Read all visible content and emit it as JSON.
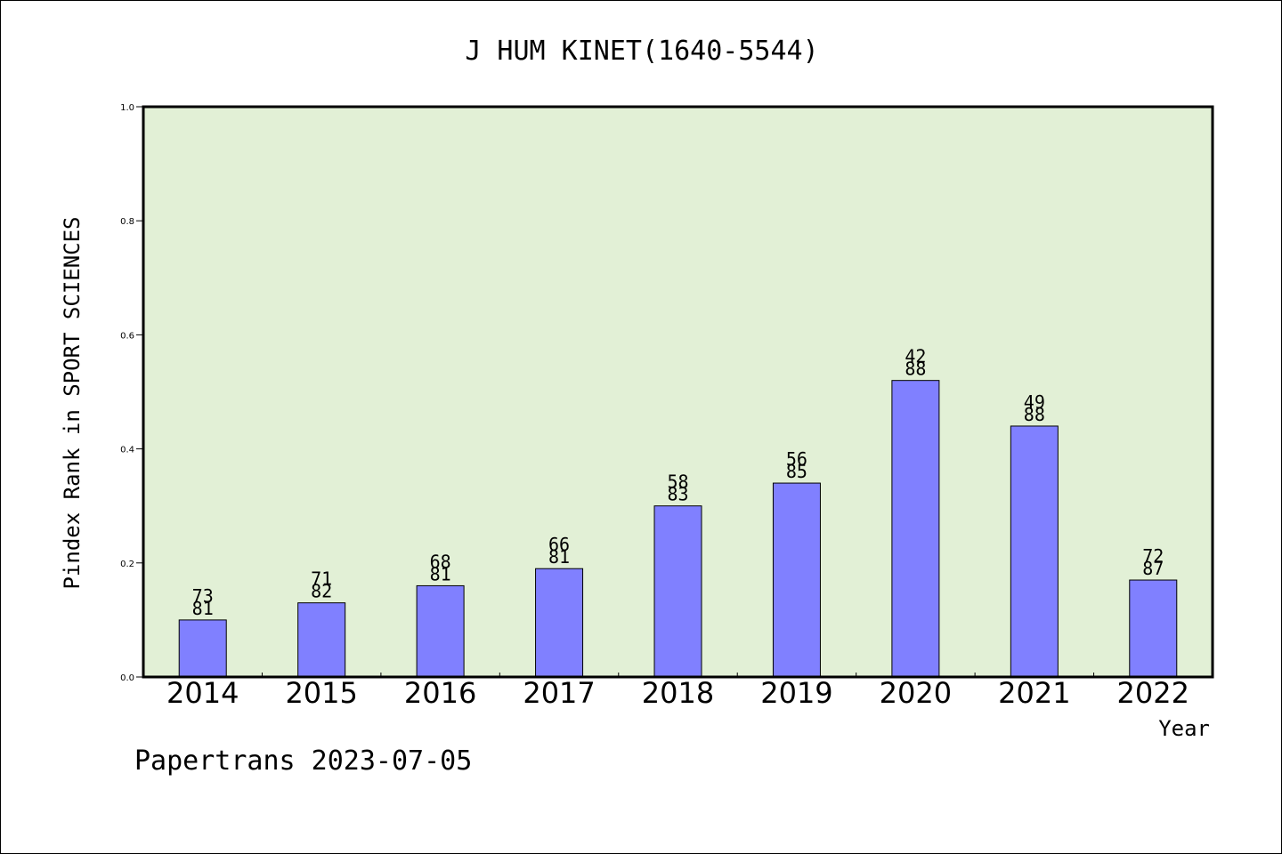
{
  "chart_data": {
    "type": "bar",
    "title": "J HUM KINET(1640-5544)",
    "xlabel": "Year",
    "ylabel": "Pindex Rank in SPORT SCIENCES",
    "categories": [
      "2014",
      "2015",
      "2016",
      "2017",
      "2018",
      "2019",
      "2020",
      "2021",
      "2022"
    ],
    "values": [
      0.1,
      0.13,
      0.16,
      0.19,
      0.3,
      0.34,
      0.52,
      0.44,
      0.17
    ],
    "label_top": [
      "73",
      "71",
      "68",
      "66",
      "58",
      "56",
      "42",
      "49",
      "72"
    ],
    "label_bottom": [
      "81",
      "82",
      "81",
      "81",
      "83",
      "85",
      "88",
      "88",
      "87"
    ],
    "ylim": [
      0,
      1.0
    ],
    "yticks": [
      "0.0",
      "0.2",
      "0.4",
      "0.6",
      "0.8",
      "1.0"
    ],
    "grid": false,
    "colors": {
      "plot_background": "#e2f0d6",
      "bar_fill": "#8080ff",
      "bar_stroke": "#000000"
    }
  },
  "footer": {
    "watermark": "Papertrans 2023-07-05"
  }
}
